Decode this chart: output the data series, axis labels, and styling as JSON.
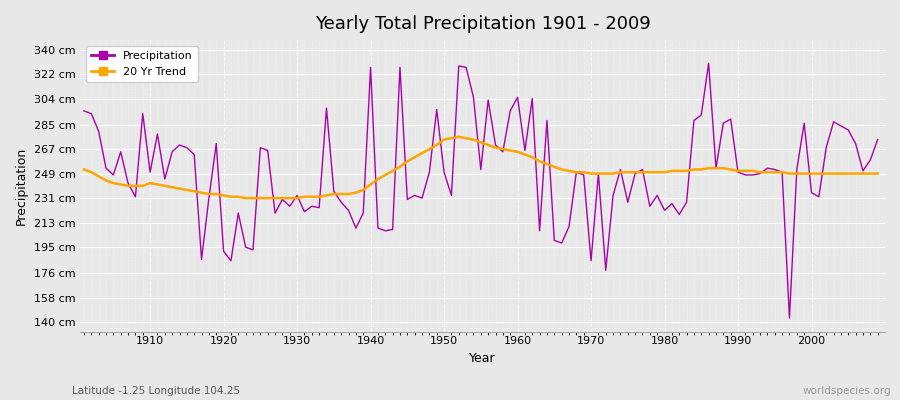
{
  "title": "Yearly Total Precipitation 1901 - 2009",
  "xlabel": "Year",
  "ylabel": "Precipitation",
  "subtitle": "Latitude -1.25 Longitude 104.25",
  "watermark": "worldspecies.org",
  "legend_labels": [
    "Precipitation",
    "20 Yr Trend"
  ],
  "precip_color": "#AA00AA",
  "trend_color": "#FFA500",
  "bg_color": "#E8E8E8",
  "grid_color": "#FFFFFF",
  "yticks": [
    140,
    158,
    176,
    195,
    213,
    231,
    249,
    267,
    285,
    304,
    322,
    340
  ],
  "ylim": [
    133,
    347
  ],
  "xlim": [
    1900.5,
    2010
  ],
  "years": [
    1901,
    1902,
    1903,
    1904,
    1905,
    1906,
    1907,
    1908,
    1909,
    1910,
    1911,
    1912,
    1913,
    1914,
    1915,
    1916,
    1917,
    1918,
    1919,
    1920,
    1921,
    1922,
    1923,
    1924,
    1925,
    1926,
    1927,
    1928,
    1929,
    1930,
    1931,
    1932,
    1933,
    1934,
    1935,
    1936,
    1937,
    1938,
    1939,
    1940,
    1941,
    1942,
    1943,
    1944,
    1945,
    1946,
    1947,
    1948,
    1949,
    1950,
    1951,
    1952,
    1953,
    1954,
    1955,
    1956,
    1957,
    1958,
    1959,
    1960,
    1961,
    1962,
    1963,
    1964,
    1965,
    1966,
    1967,
    1968,
    1969,
    1970,
    1971,
    1972,
    1973,
    1974,
    1975,
    1976,
    1977,
    1978,
    1979,
    1980,
    1981,
    1982,
    1983,
    1984,
    1985,
    1986,
    1987,
    1988,
    1989,
    1990,
    1991,
    1992,
    1993,
    1994,
    1995,
    1996,
    1997,
    1998,
    1999,
    2000,
    2001,
    2002,
    2003,
    2004,
    2005,
    2006,
    2007,
    2008,
    2009
  ],
  "precip": [
    295,
    293,
    280,
    253,
    248,
    265,
    242,
    232,
    293,
    250,
    278,
    245,
    265,
    270,
    268,
    263,
    186,
    231,
    271,
    192,
    185,
    220,
    195,
    193,
    268,
    266,
    220,
    230,
    225,
    233,
    221,
    225,
    224,
    297,
    236,
    228,
    222,
    209,
    220,
    327,
    209,
    207,
    208,
    327,
    230,
    233,
    231,
    250,
    296,
    250,
    233,
    328,
    327,
    305,
    252,
    303,
    270,
    265,
    295,
    305,
    266,
    304,
    207,
    288,
    200,
    198,
    210,
    250,
    248,
    185,
    249,
    178,
    233,
    252,
    228,
    249,
    252,
    225,
    233,
    222,
    227,
    219,
    228,
    288,
    292,
    330,
    253,
    286,
    289,
    250,
    248,
    248,
    249,
    253,
    252,
    250,
    143,
    252,
    286,
    235,
    232,
    268,
    287,
    284,
    281,
    271,
    251,
    259,
    274
  ],
  "trend": [
    252,
    250,
    247,
    244,
    242,
    241,
    240,
    240,
    240,
    242,
    241,
    240,
    239,
    238,
    237,
    236,
    235,
    234,
    234,
    233,
    232,
    232,
    231,
    231,
    231,
    231,
    231,
    231,
    231,
    231,
    232,
    232,
    232,
    233,
    234,
    234,
    234,
    235,
    237,
    241,
    245,
    248,
    251,
    254,
    258,
    261,
    264,
    267,
    270,
    274,
    275,
    276,
    275,
    274,
    272,
    270,
    268,
    267,
    266,
    265,
    263,
    261,
    258,
    256,
    254,
    252,
    251,
    250,
    250,
    249,
    249,
    249,
    249,
    250,
    250,
    250,
    250,
    250,
    250,
    250,
    251,
    251,
    251,
    252,
    252,
    253,
    253,
    253,
    252,
    251,
    251,
    251,
    250,
    250,
    250,
    250,
    249,
    249,
    249,
    249,
    249,
    249,
    249,
    249,
    249,
    249,
    249,
    249,
    249
  ]
}
